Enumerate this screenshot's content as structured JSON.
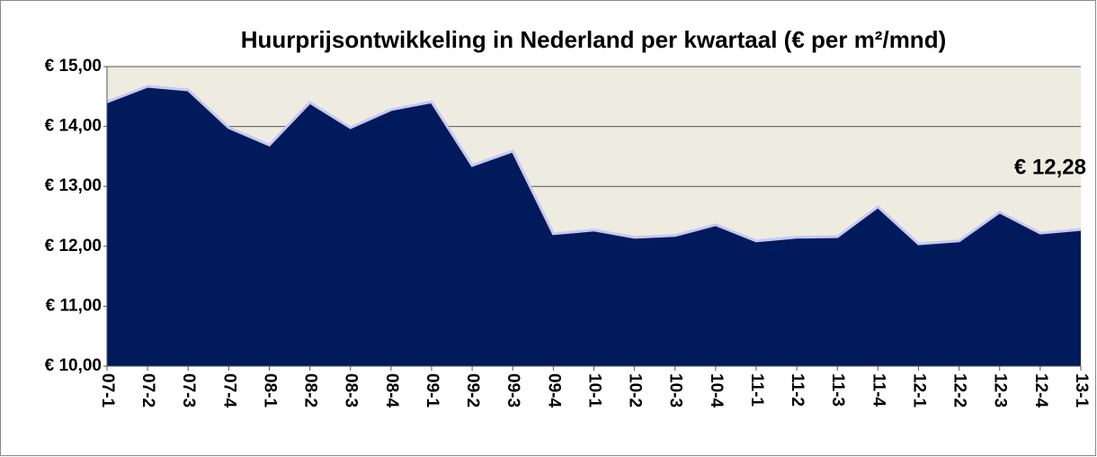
{
  "chart_data": {
    "type": "area",
    "title": "Huurprijsontwikkeling in Nederland per kwartaal (€ per m²/mnd)",
    "categories": [
      "07-1",
      "07-2",
      "07-3",
      "07-4",
      "08-1",
      "08-2",
      "08-3",
      "08-4",
      "09-1",
      "09-2",
      "09-3",
      "09-4",
      "10-1",
      "10-2",
      "10-3",
      "10-4",
      "11-1",
      "11-2",
      "11-3",
      "11-4",
      "12-1",
      "12-2",
      "12-3",
      "12-4",
      "13-1"
    ],
    "values": [
      14.41,
      14.67,
      14.61,
      13.98,
      13.69,
      14.4,
      13.98,
      14.28,
      14.41,
      13.35,
      13.59,
      12.21,
      12.27,
      12.15,
      12.18,
      12.36,
      12.09,
      12.15,
      12.16,
      12.66,
      12.04,
      12.09,
      12.57,
      12.22,
      12.28
    ],
    "color": "#001a5c",
    "annotation": "€ 12,28",
    "ylim": [
      10,
      15
    ],
    "yticks": [
      {
        "value": 10,
        "label": "€ 10,00"
      },
      {
        "value": 11,
        "label": "€ 11,00"
      },
      {
        "value": 12,
        "label": "€ 12,00"
      },
      {
        "value": 13,
        "label": "€ 13,00"
      },
      {
        "value": 14,
        "label": "€ 14,00"
      },
      {
        "value": 15,
        "label": "€ 15,00"
      }
    ],
    "grid": true
  }
}
